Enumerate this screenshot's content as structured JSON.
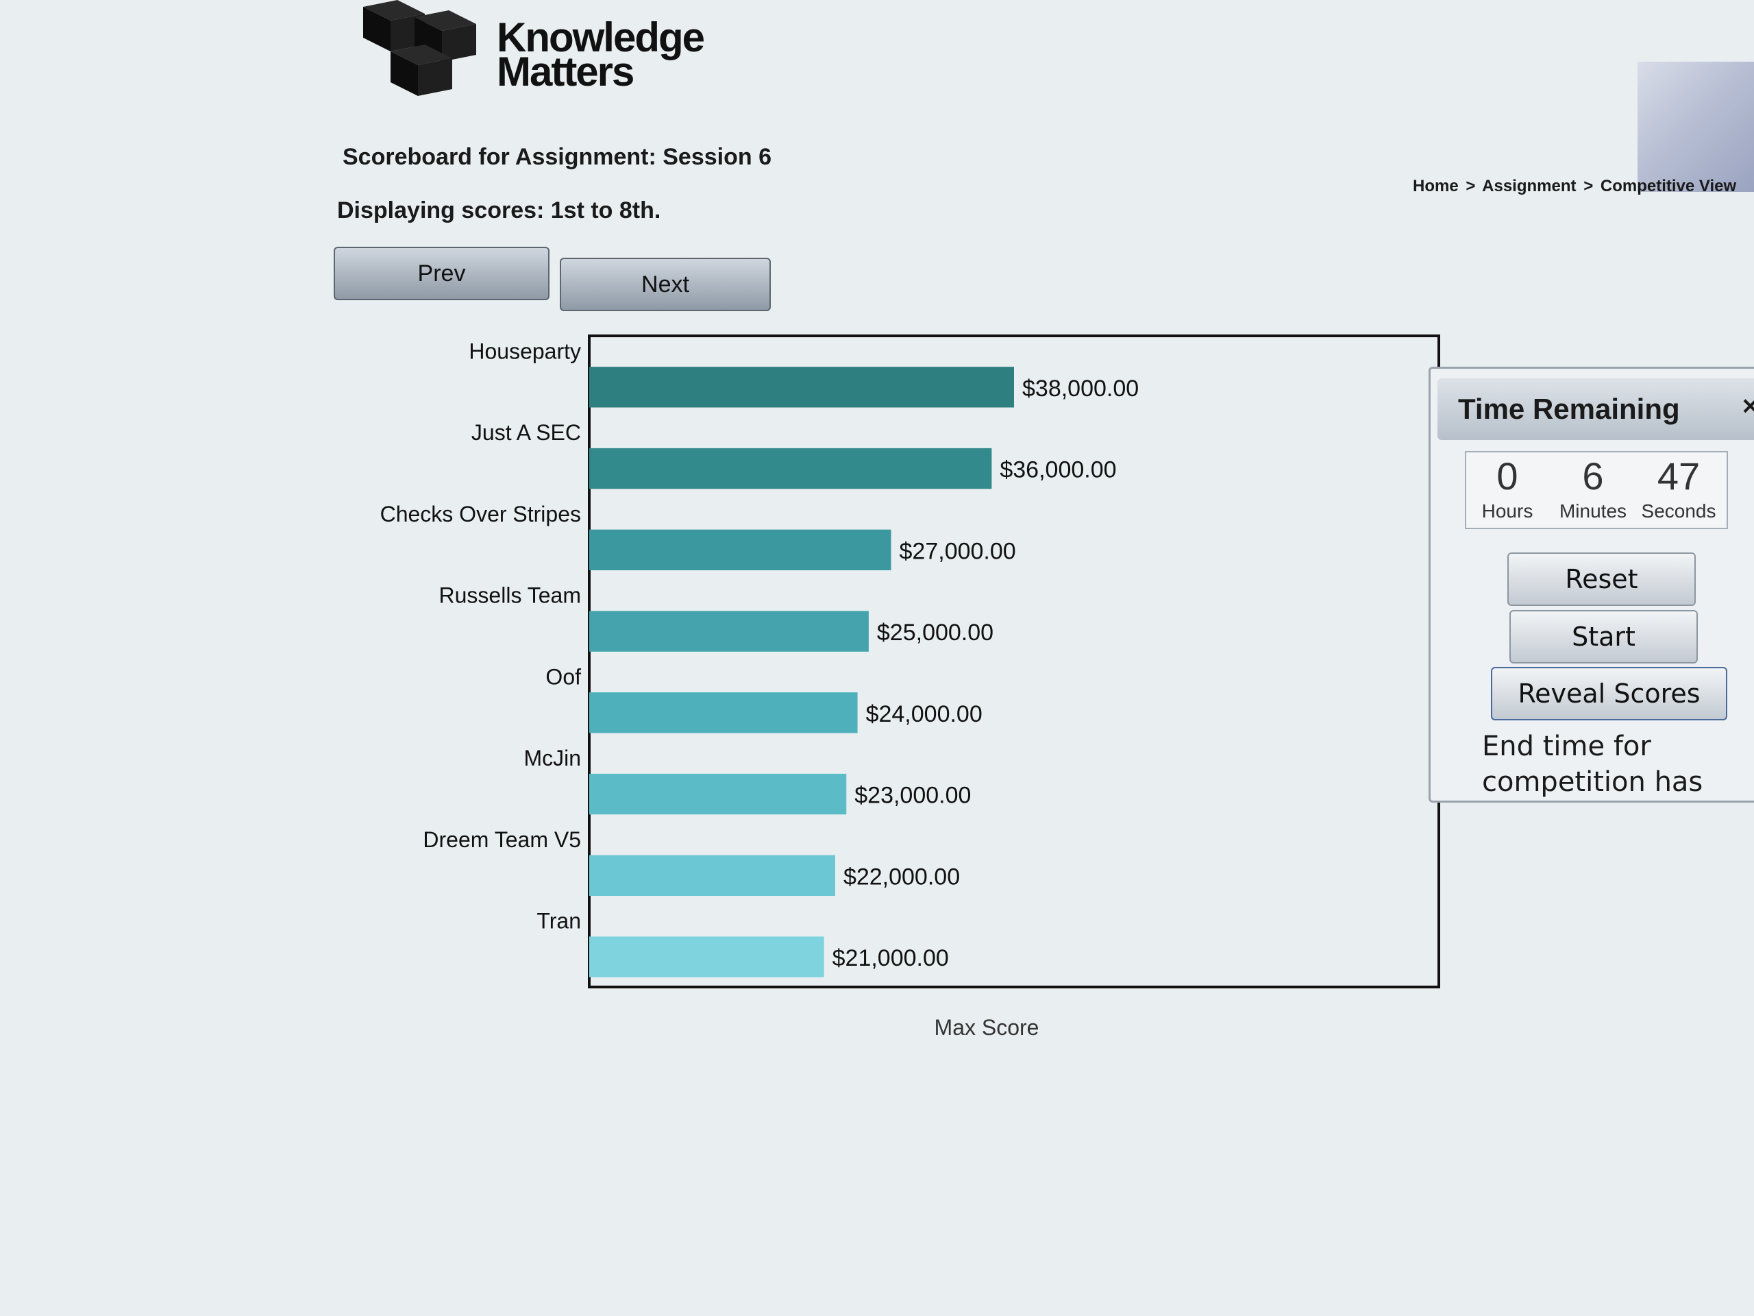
{
  "brand": {
    "name_line1": "Knowledge",
    "name_line2": "Matters"
  },
  "header": {
    "title": "Scoreboard for Assignment: Session 6",
    "subtitle": "Displaying scores: 1st to 8th.",
    "breadcrumb": [
      "Home",
      "Assignment",
      "Competitive View"
    ],
    "breadcrumb_sep": ">"
  },
  "pager": {
    "prev_label": "Prev",
    "next_label": "Next"
  },
  "chart_data": {
    "type": "bar",
    "orientation": "horizontal",
    "categories": [
      "Houseparty",
      "Just A SEC",
      "Checks Over Stripes",
      "Russells Team",
      "Oof",
      "McJin",
      "Dreem Team V5",
      "Tran"
    ],
    "values": [
      38000,
      36000,
      27000,
      25000,
      24000,
      23000,
      22000,
      21000
    ],
    "value_labels": [
      "$38,000.00",
      "$36,000.00",
      "$27,000.00",
      "$25,000.00",
      "$24,000.00",
      "$23,000.00",
      "$22,000.00",
      "$21,000.00"
    ],
    "xlabel": "Max Score",
    "colors": [
      "#2e8080",
      "#338a8c",
      "#3b989e",
      "#44a3ac",
      "#4eb0ba",
      "#5bbcc8",
      "#6bc7d3",
      "#7fd3de"
    ]
  },
  "timer": {
    "title": "Time Remaining",
    "close_icon": "close-icon",
    "hours": "0",
    "minutes": "6",
    "seconds": "47",
    "hours_label": "Hours",
    "minutes_label": "Minutes",
    "seconds_label": "Seconds",
    "reset_label": "Reset",
    "start_label": "Start",
    "reveal_label": "Reveal Scores",
    "note_line1": "End time for",
    "note_line2": "competition has"
  }
}
